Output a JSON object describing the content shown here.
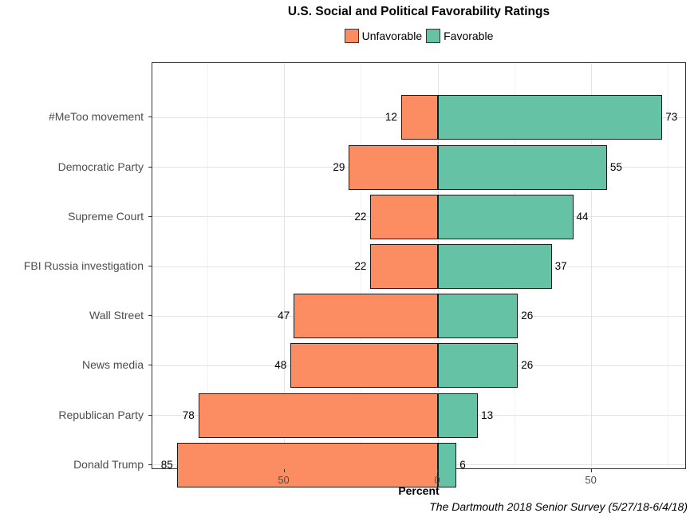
{
  "chart": {
    "title": "U.S. Social and Political Favorability Ratings",
    "xlabel": "Percent",
    "caption": "The Dartmouth 2018 Senior Survey (5/27/18-6/4/18)"
  },
  "legend": {
    "items": [
      {
        "label": "Unfavorable",
        "color": "#FC8D62"
      },
      {
        "label": "Favorable",
        "color": "#66C2A5"
      }
    ]
  },
  "chart_data": {
    "type": "bar",
    "orientation": "horizontal-diverging",
    "title": "U.S. Social and Political Favorability Ratings",
    "xlabel": "Percent",
    "ylabel": "",
    "categories": [
      "#MeToo movement",
      "Democratic Party",
      "Supreme Court",
      "FBI Russia investigation",
      "Wall Street",
      "News media",
      "Republican Party",
      "Donald Trump"
    ],
    "series": [
      {
        "name": "Unfavorable",
        "color": "#FC8D62",
        "direction": -1,
        "values": [
          12,
          29,
          22,
          22,
          47,
          48,
          78,
          85
        ]
      },
      {
        "name": "Favorable",
        "color": "#66C2A5",
        "direction": 1,
        "values": [
          73,
          55,
          44,
          37,
          26,
          26,
          13,
          6
        ]
      }
    ],
    "xlim": [
      -93,
      81
    ],
    "x_major_ticks": [
      {
        "value": -50,
        "label": "50"
      },
      {
        "value": 0,
        "label": "0"
      },
      {
        "value": 50,
        "label": "50"
      }
    ],
    "x_minor_ticks": [
      -75,
      -25,
      25,
      75
    ],
    "grid": true,
    "legend_position": "top",
    "source_note": "The Dartmouth 2018 Senior Survey (5/27/18-6/4/18)"
  }
}
